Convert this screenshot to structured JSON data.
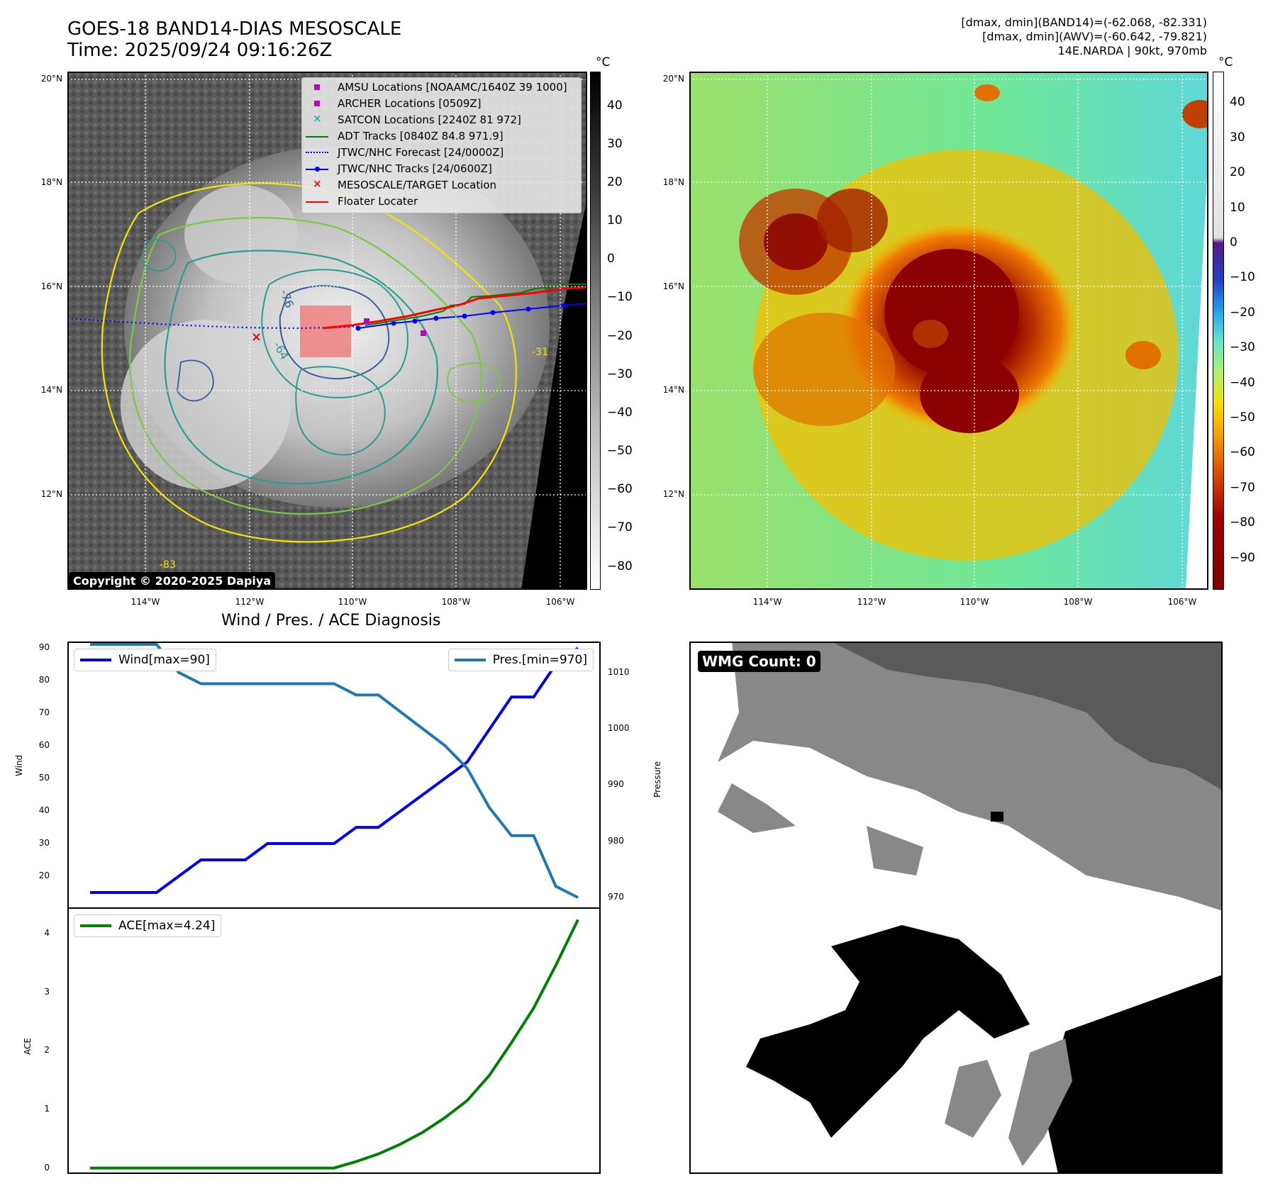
{
  "header": {
    "title_line1": "GOES-18 BAND14-DIAS MESOSCALE",
    "title_line2": "Time: 2025/09/24 09:16:26Z",
    "info_line1": "[dmax, dmin](BAND14)=(-62.068, -82.331)",
    "info_line2": "[dmax, dmin](AWV)=(-60.642, -79.821)",
    "info_line3": "14E.NARDA | 90kt, 970mb"
  },
  "map": {
    "lat_labels": [
      "20°N",
      "18°N",
      "16°N",
      "14°N",
      "12°N"
    ],
    "lon_labels": [
      "114°W",
      "112°W",
      "110°W",
      "108°W",
      "106°W"
    ],
    "copyright": "Copyright © 2020-2025 Dapiya",
    "contour_labels": [
      "-76",
      "-64",
      "-83",
      "-31"
    ],
    "colors": {
      "contour_yellow": "#f2e600",
      "contour_lightgreen": "#7ac943",
      "contour_teal": "#2a9d8f",
      "contour_blue": "#3b5b9c",
      "target_box": "#f08080"
    }
  },
  "legend": {
    "items": [
      {
        "label": "AMSU Locations [NOAAMC/1640Z 39 1000]",
        "marker": "square",
        "color": "#c000c0"
      },
      {
        "label": "ARCHER Locations [0509Z]",
        "marker": "square",
        "color": "#c000c0"
      },
      {
        "label": "SATCON Locations [2240Z 81 972]",
        "marker": "x",
        "color": "#20b2aa"
      },
      {
        "label": "ADT Tracks [0840Z 84.8 971.9]",
        "marker": "line",
        "color": "#008000"
      },
      {
        "label": "JTWC/NHC Forecast [24/0000Z]",
        "marker": "dotted",
        "color": "#0000ff"
      },
      {
        "label": "JTWC/NHC Tracks [24/0600Z]",
        "marker": "line-dot",
        "color": "#0000ff"
      },
      {
        "label": "MESOSCALE/TARGET Location",
        "marker": "x",
        "color": "#ff0000"
      },
      {
        "label": "Floater Locater",
        "marker": "line",
        "color": "#ff0000"
      }
    ]
  },
  "colorbar_gray": {
    "unit": "°C",
    "ticks": [
      "40",
      "30",
      "20",
      "10",
      "0",
      "−10",
      "−20",
      "−30",
      "−40",
      "−50",
      "−60",
      "−70",
      "−80"
    ]
  },
  "colorbar_color": {
    "unit": "°C",
    "ticks": [
      "40",
      "30",
      "20",
      "10",
      "0",
      "−10",
      "−20",
      "−30",
      "−40",
      "−50",
      "−60",
      "−70",
      "−80",
      "−90"
    ]
  },
  "wind_panel": {
    "title": "Wind / Pres. / ACE Diagnosis",
    "wind_ylabel": "Wind",
    "pressure_ylabel": "Pressure",
    "ace_ylabel": "ACE",
    "wind_ticks": [
      "90",
      "80",
      "70",
      "60",
      "50",
      "40",
      "30",
      "20"
    ],
    "pressure_ticks": [
      "1010",
      "1000",
      "990",
      "980",
      "970"
    ],
    "ace_ticks": [
      "4",
      "3",
      "2",
      "1",
      "0"
    ]
  },
  "wmg": {
    "label": "WMG Count: 0"
  },
  "chart_data": [
    {
      "type": "line",
      "title": "Wind / Pres. / ACE Diagnosis",
      "ylabel": "Wind",
      "ylim": [
        10,
        92
      ],
      "x": [
        0,
        1,
        2,
        3,
        4,
        5,
        6,
        7,
        8,
        9,
        10,
        11,
        12,
        13,
        14,
        15,
        16,
        17,
        18,
        19,
        20,
        21,
        22
      ],
      "series": [
        {
          "name": "Wind[max=90]",
          "color": "#0000ee",
          "values": [
            15,
            15,
            15,
            15,
            20,
            25,
            25,
            25,
            30,
            30,
            30,
            30,
            35,
            35,
            40,
            45,
            50,
            55,
            65,
            75,
            75,
            85,
            90
          ]
        }
      ]
    },
    {
      "type": "line",
      "ylabel": "Pressure",
      "ylim": [
        968,
        1015.5
      ],
      "x": [
        0,
        1,
        2,
        3,
        4,
        5,
        6,
        7,
        8,
        9,
        10,
        11,
        12,
        13,
        14,
        15,
        16,
        17,
        18,
        19,
        20,
        21,
        22
      ],
      "series": [
        {
          "name": "Pres.[min=970]",
          "color": "#1f77b4",
          "values": [
            1015,
            1015,
            1015,
            1015,
            1010,
            1008,
            1008,
            1008,
            1008,
            1008,
            1008,
            1008,
            1006,
            1006,
            1003,
            1000,
            997,
            993,
            986,
            981,
            981,
            972,
            970
          ]
        }
      ]
    },
    {
      "type": "line",
      "ylabel": "ACE",
      "ylim": [
        -0.1,
        4.45
      ],
      "x": [
        0,
        1,
        2,
        3,
        4,
        5,
        6,
        7,
        8,
        9,
        10,
        11,
        12,
        13,
        14,
        15,
        16,
        17,
        18,
        19,
        20,
        21,
        22
      ],
      "series": [
        {
          "name": "ACE[max=4.24]",
          "color": "#008000",
          "values": [
            0,
            0,
            0,
            0,
            0,
            0,
            0,
            0,
            0,
            0,
            0,
            0,
            0.11,
            0.24,
            0.41,
            0.61,
            0.86,
            1.15,
            1.58,
            2.14,
            2.73,
            3.46,
            4.24
          ]
        }
      ]
    }
  ]
}
